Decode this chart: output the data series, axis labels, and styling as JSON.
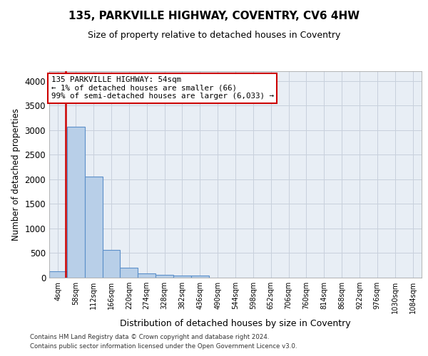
{
  "title1": "135, PARKVILLE HIGHWAY, COVENTRY, CV6 4HW",
  "title2": "Size of property relative to detached houses in Coventry",
  "xlabel": "Distribution of detached houses by size in Coventry",
  "ylabel": "Number of detached properties",
  "bin_labels": [
    "4sqm",
    "58sqm",
    "112sqm",
    "166sqm",
    "220sqm",
    "274sqm",
    "328sqm",
    "382sqm",
    "436sqm",
    "490sqm",
    "544sqm",
    "598sqm",
    "652sqm",
    "706sqm",
    "760sqm",
    "814sqm",
    "868sqm",
    "922sqm",
    "976sqm",
    "1030sqm",
    "1084sqm"
  ],
  "bar_heights": [
    130,
    3070,
    2060,
    560,
    200,
    80,
    60,
    50,
    40,
    0,
    0,
    0,
    0,
    0,
    0,
    0,
    0,
    0,
    0,
    0,
    0
  ],
  "bar_color": "#b8cfe8",
  "bar_edgecolor": "#5b8fc9",
  "bar_linewidth": 0.8,
  "vline_color": "#cc0000",
  "annotation_text": "135 PARKVILLE HIGHWAY: 54sqm\n← 1% of detached houses are smaller (66)\n99% of semi-detached houses are larger (6,033) →",
  "annotation_box_color": "#ffffff",
  "annotation_box_edgecolor": "#cc0000",
  "ylim": [
    0,
    4200
  ],
  "yticks": [
    0,
    500,
    1000,
    1500,
    2000,
    2500,
    3000,
    3500,
    4000
  ],
  "footer1": "Contains HM Land Registry data © Crown copyright and database right 2024.",
  "footer2": "Contains public sector information licensed under the Open Government Licence v3.0.",
  "bg_color": "#ffffff",
  "plot_bg_color": "#e8eef5",
  "grid_color": "#c8d0dc"
}
